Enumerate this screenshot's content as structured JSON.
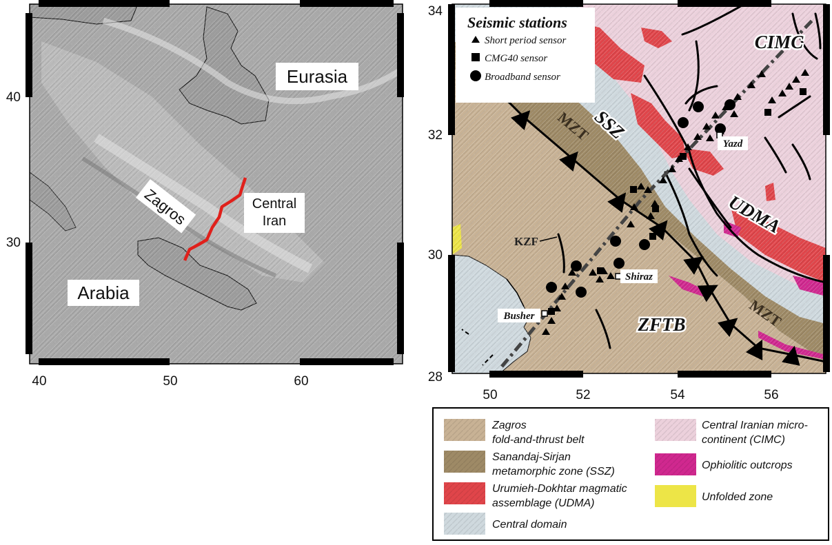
{
  "left_map": {
    "x_ticks": [
      "40",
      "50",
      "60"
    ],
    "y_ticks": [
      "40",
      "30"
    ],
    "labels": {
      "eurasia": "Eurasia",
      "arabia": "Arabia",
      "zagros": "Zagros",
      "central_line1": "Central",
      "central_line2": "Iran"
    },
    "colors": {
      "terrain": "#a9a9a9",
      "sea": "#9c9c9c",
      "profile": "#e0201b"
    }
  },
  "right_map": {
    "x_ticks": [
      "50",
      "52",
      "54",
      "56"
    ],
    "y_ticks": [
      "34",
      "32",
      "30",
      "28"
    ],
    "region_labels": {
      "cimc": "CIMC",
      "ssz": "SSZ",
      "udma": "UDMA",
      "zftb": "ZFTB",
      "mzt_upper": "MZT",
      "mzt_lower": "MZT",
      "kzf": "KZF"
    },
    "cities": {
      "yazd": "Yazd",
      "shiraz": "Shiraz",
      "busher": "Busher"
    },
    "station_legend": {
      "title": "Seismic stations",
      "items": [
        {
          "label": "Short period sensor",
          "marker": "triangle"
        },
        {
          "label": "CMG40 sensor",
          "marker": "square"
        },
        {
          "label": "Broadband sensor",
          "marker": "circle"
        }
      ]
    },
    "colors": {
      "zftb": "#c8b295",
      "ssz": "#9e8a66",
      "udma": "#e0454a",
      "central": "#cfd9de",
      "cimc": "#ecd1dc",
      "ophiolite": "#d0288f",
      "unfolded": "#ede547"
    }
  },
  "legend": {
    "items": [
      {
        "line1": "Zagros",
        "line2": "fold-and-thrust belt",
        "color": "#c8b295"
      },
      {
        "line1": "Sanandaj-Sirjan",
        "line2": "metamorphic zone (SSZ)",
        "color": "#9e8a66"
      },
      {
        "line1": "Urumieh-Dokhtar magmatic",
        "line2": "assemblage (UDMA)",
        "color": "#e0454a"
      },
      {
        "line1": "Central domain",
        "line2": "",
        "color": "#cfd9de"
      },
      {
        "line1": "Central Iranian micro-",
        "line2": "continent (CIMC)",
        "color": "#ecd1dc"
      },
      {
        "line1": "Ophiolitic outcrops",
        "line2": "",
        "color": "#d0288f"
      },
      {
        "line1": "Unfolded zone",
        "line2": "",
        "color": "#ede547"
      }
    ]
  }
}
